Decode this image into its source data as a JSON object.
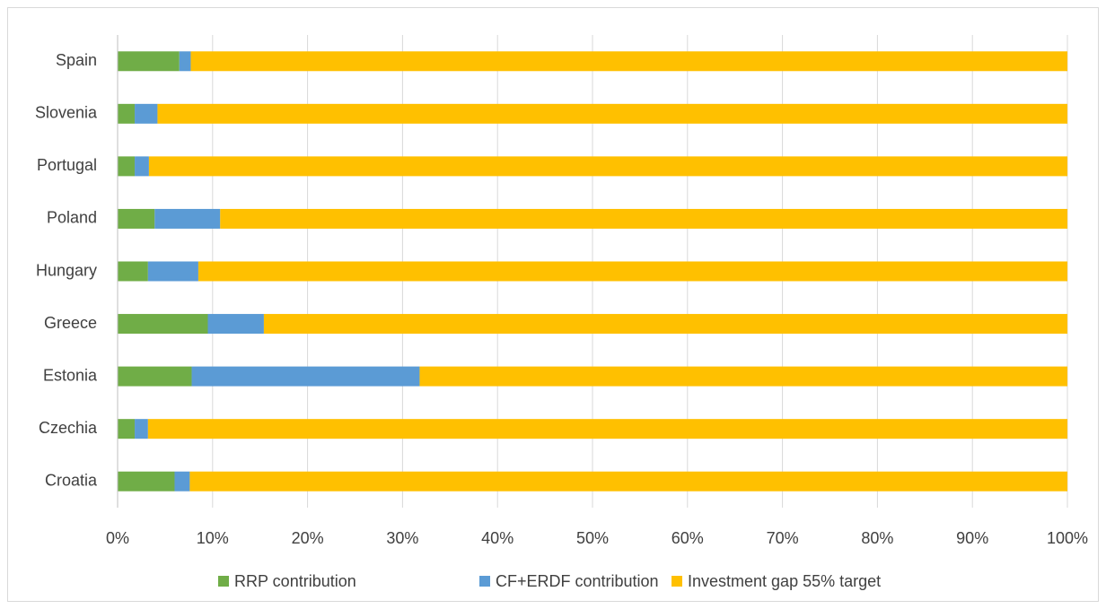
{
  "chart_data": {
    "type": "bar",
    "orientation": "horizontal",
    "stacked": true,
    "categories": [
      "Spain",
      "Slovenia",
      "Portugal",
      "Poland",
      "Hungary",
      "Greece",
      "Estonia",
      "Czechia",
      "Croatia"
    ],
    "series": [
      {
        "name": "RRP contribution",
        "color": "#70ad47",
        "values": [
          6.5,
          1.8,
          1.8,
          3.9,
          3.2,
          9.5,
          7.8,
          1.8,
          6.0
        ]
      },
      {
        "name": "CF+ERDF contribution",
        "color": "#5b9bd5",
        "values": [
          1.2,
          2.4,
          1.5,
          6.9,
          5.3,
          5.9,
          24.0,
          1.4,
          1.6
        ]
      },
      {
        "name": "Investment gap 55% target",
        "color": "#ffc000",
        "values": [
          92.3,
          95.8,
          96.7,
          89.2,
          91.5,
          84.6,
          68.2,
          96.8,
          92.4
        ]
      }
    ],
    "xlim": [
      0,
      100
    ],
    "xticks": [
      {
        "value": 0,
        "label": "0%"
      },
      {
        "value": 10,
        "label": "10%"
      },
      {
        "value": 20,
        "label": "20%"
      },
      {
        "value": 30,
        "label": "30%"
      },
      {
        "value": 40,
        "label": "40%"
      },
      {
        "value": 50,
        "label": "50%"
      },
      {
        "value": 60,
        "label": "60%"
      },
      {
        "value": 70,
        "label": "70%"
      },
      {
        "value": 80,
        "label": "80%"
      },
      {
        "value": 90,
        "label": "90%"
      },
      {
        "value": 100,
        "label": "100%"
      }
    ],
    "grid": true,
    "legend": "bottom"
  }
}
